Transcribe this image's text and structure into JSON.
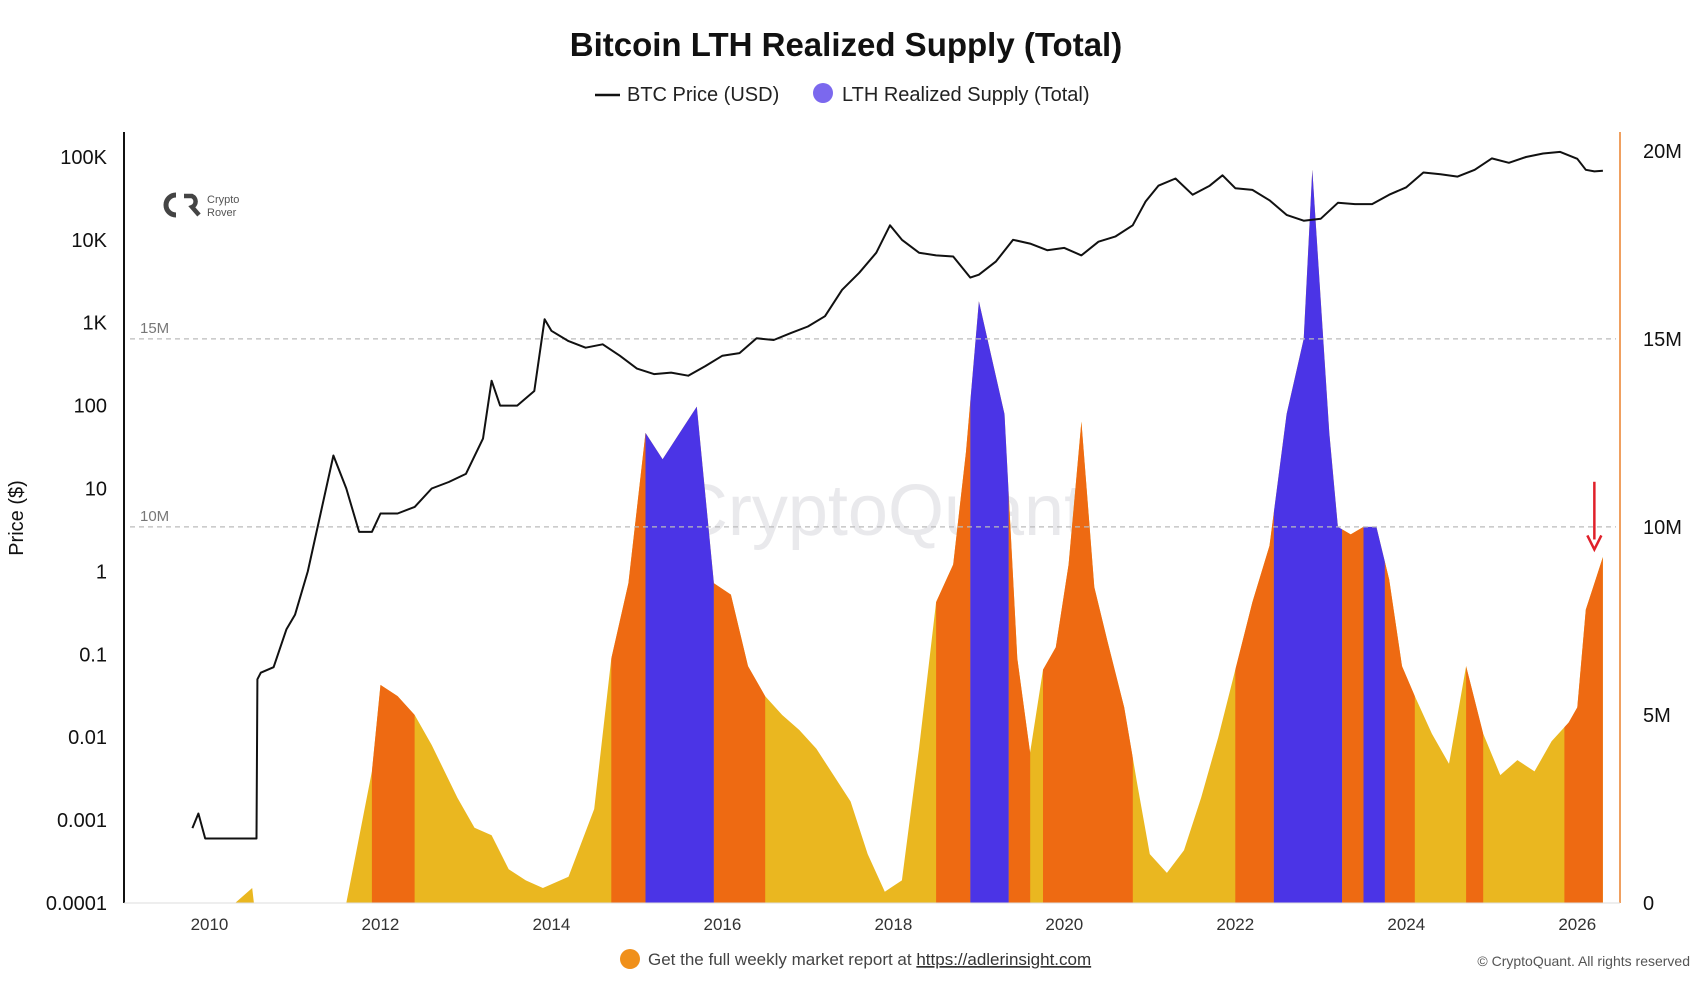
{
  "colors": {
    "price_line": "#111111",
    "lth_low": "#eab720",
    "lth_mid": "#ee6a12",
    "lth_high": "#4b34e6",
    "right_axis": "#f0a060",
    "gridline": "#bbbbbb",
    "arrow": "#e0202a",
    "legend_dot": "#7b68ee",
    "footer_dot": "#f0901a"
  },
  "brand": {
    "logo_icon": "crypto-rover-logo-icon",
    "logo_line1": "Crypto",
    "logo_line2": "Rover",
    "watermark": "CryptoQuant"
  },
  "footer": {
    "icon": "orange-dot-icon",
    "text": "Get the full weekly market report at ",
    "link": "https://adlerinsight.com",
    "copyright": "© CryptoQuant. All rights reserved"
  },
  "chart_data": {
    "type": "area",
    "title": "Bitcoin LTH Realized Supply (Total)",
    "ylabel": "Price ($)",
    "xlabel": "",
    "legend": [
      "BTC Price (USD)",
      "LTH Realized Supply (Total)"
    ],
    "legend_position": "top-center",
    "x_ticks": [
      "2010",
      "2012",
      "2014",
      "2016",
      "2018",
      "2020",
      "2022",
      "2024",
      "2026"
    ],
    "x_range": [
      2009.0,
      2026.5
    ],
    "y_left": {
      "scale": "log",
      "range": [
        0.0001,
        200000
      ],
      "ticks": [
        {
          "v": 0.0001,
          "label": "0.0001"
        },
        {
          "v": 0.001,
          "label": "0.001"
        },
        {
          "v": 0.01,
          "label": "0.01"
        },
        {
          "v": 0.1,
          "label": "0.1"
        },
        {
          "v": 1,
          "label": "1"
        },
        {
          "v": 10,
          "label": "10"
        },
        {
          "v": 100,
          "label": "100"
        },
        {
          "v": 1000,
          "label": "1K"
        },
        {
          "v": 10000,
          "label": "10K"
        },
        {
          "v": 100000,
          "label": "100K"
        }
      ]
    },
    "y_right": {
      "scale": "linear",
      "range": [
        0,
        20500000
      ],
      "ticks": [
        {
          "v": 0,
          "label": "0"
        },
        {
          "v": 5000000,
          "label": "5M"
        },
        {
          "v": 10000000,
          "label": "10M"
        },
        {
          "v": 15000000,
          "label": "15M"
        },
        {
          "v": 20000000,
          "label": "20M"
        }
      ]
    },
    "reference_lines": [
      {
        "value": 15000000,
        "label": "15M"
      },
      {
        "value": 10000000,
        "label": "10M"
      }
    ],
    "highlight_bands": [
      {
        "start": 2011.9,
        "end": 2012.4,
        "level": "mid"
      },
      {
        "start": 2014.7,
        "end": 2015.1,
        "level": "mid"
      },
      {
        "start": 2015.1,
        "end": 2015.9,
        "level": "high"
      },
      {
        "start": 2015.9,
        "end": 2016.5,
        "level": "mid"
      },
      {
        "start": 2018.5,
        "end": 2018.9,
        "level": "mid"
      },
      {
        "start": 2018.9,
        "end": 2019.35,
        "level": "high"
      },
      {
        "start": 2019.35,
        "end": 2019.6,
        "level": "mid"
      },
      {
        "start": 2019.75,
        "end": 2020.8,
        "level": "mid"
      },
      {
        "start": 2022.0,
        "end": 2022.45,
        "level": "mid"
      },
      {
        "start": 2022.45,
        "end": 2023.25,
        "level": "high"
      },
      {
        "start": 2023.25,
        "end": 2023.5,
        "level": "mid"
      },
      {
        "start": 2023.5,
        "end": 2023.75,
        "level": "high"
      },
      {
        "start": 2023.75,
        "end": 2024.1,
        "level": "mid"
      },
      {
        "start": 2024.7,
        "end": 2024.9,
        "level": "mid"
      },
      {
        "start": 2025.85,
        "end": 2026.3,
        "level": "mid"
      }
    ],
    "arrow_annotation": {
      "x": 2026.2,
      "y_from": 11200000,
      "y_to": 9400000
    },
    "series": [
      {
        "name": "BTC Price (USD)",
        "axis": "left",
        "x": [
          2009.8,
          2009.87,
          2009.95,
          2010.0,
          2010.55,
          2010.56,
          2010.6,
          2010.75,
          2010.9,
          2011.0,
          2011.15,
          2011.3,
          2011.45,
          2011.6,
          2011.75,
          2011.9,
          2012.0,
          2012.2,
          2012.4,
          2012.6,
          2012.8,
          2013.0,
          2013.2,
          2013.3,
          2013.4,
          2013.6,
          2013.8,
          2013.92,
          2014.0,
          2014.2,
          2014.4,
          2014.6,
          2014.8,
          2015.0,
          2015.2,
          2015.4,
          2015.6,
          2015.8,
          2016.0,
          2016.2,
          2016.4,
          2016.6,
          2016.8,
          2017.0,
          2017.2,
          2017.4,
          2017.6,
          2017.8,
          2017.96,
          2018.1,
          2018.3,
          2018.5,
          2018.7,
          2018.9,
          2019.0,
          2019.2,
          2019.4,
          2019.6,
          2019.8,
          2020.0,
          2020.2,
          2020.4,
          2020.6,
          2020.8,
          2020.95,
          2021.1,
          2021.3,
          2021.5,
          2021.7,
          2021.85,
          2022.0,
          2022.2,
          2022.4,
          2022.6,
          2022.8,
          2023.0,
          2023.2,
          2023.4,
          2023.6,
          2023.8,
          2024.0,
          2024.2,
          2024.4,
          2024.6,
          2024.8,
          2025.0,
          2025.2,
          2025.4,
          2025.6,
          2025.8,
          2026.0,
          2026.1,
          2026.2,
          2026.3
        ],
        "y": [
          0.0008,
          0.0012,
          0.0006,
          0.0006,
          0.0006,
          0.05,
          0.06,
          0.07,
          0.2,
          0.3,
          1.0,
          5,
          25,
          10,
          3,
          3,
          5,
          5,
          6,
          10,
          12,
          15,
          40,
          200,
          100,
          100,
          150,
          1100,
          800,
          600,
          500,
          550,
          400,
          280,
          240,
          250,
          230,
          300,
          400,
          430,
          650,
          620,
          750,
          900,
          1200,
          2500,
          4000,
          7000,
          15000,
          10000,
          7000,
          6500,
          6300,
          3500,
          3800,
          5500,
          10000,
          9000,
          7500,
          8000,
          6500,
          9500,
          11000,
          15000,
          29000,
          45000,
          55000,
          35000,
          45000,
          60000,
          42000,
          40000,
          30000,
          20000,
          17000,
          18000,
          28000,
          27000,
          27000,
          35000,
          43000,
          65000,
          62000,
          58000,
          70000,
          96000,
          85000,
          100000,
          110000,
          115000,
          95000,
          70000,
          67000,
          68000
        ]
      },
      {
        "name": "LTH Realized Supply (Total)",
        "axis": "right",
        "x": [
          2010.3,
          2010.5,
          2010.52,
          2011.6,
          2011.9,
          2012.0,
          2012.2,
          2012.4,
          2012.6,
          2012.9,
          2013.1,
          2013.3,
          2013.5,
          2013.7,
          2013.9,
          2014.2,
          2014.5,
          2014.7,
          2014.9,
          2015.1,
          2015.3,
          2015.5,
          2015.7,
          2015.9,
          2016.1,
          2016.3,
          2016.5,
          2016.7,
          2016.9,
          2017.1,
          2017.3,
          2017.5,
          2017.7,
          2017.9,
          2018.1,
          2018.3,
          2018.5,
          2018.7,
          2018.85,
          2019.0,
          2019.15,
          2019.3,
          2019.45,
          2019.6,
          2019.75,
          2019.9,
          2020.05,
          2020.2,
          2020.35,
          2020.5,
          2020.7,
          2020.85,
          2021.0,
          2021.2,
          2021.4,
          2021.6,
          2021.8,
          2022.0,
          2022.2,
          2022.4,
          2022.6,
          2022.8,
          2022.9,
          2023.0,
          2023.1,
          2023.2,
          2023.35,
          2023.5,
          2023.65,
          2023.8,
          2023.95,
          2024.1,
          2024.3,
          2024.5,
          2024.7,
          2024.9,
          2025.1,
          2025.3,
          2025.5,
          2025.7,
          2025.9,
          2026.0,
          2026.1,
          2026.2,
          2026.3
        ],
        "y": [
          0,
          400000,
          0,
          0,
          3500000,
          5800000,
          5500000,
          5000000,
          4200000,
          2800000,
          2000000,
          1800000,
          900000,
          600000,
          400000,
          700000,
          2500000,
          6500000,
          8500000,
          12500000,
          11800000,
          12500000,
          13200000,
          8500000,
          8200000,
          6300000,
          5500000,
          5000000,
          4600000,
          4100000,
          3400000,
          2700000,
          1300000,
          300000,
          600000,
          4100000,
          8000000,
          9000000,
          12000000,
          16000000,
          14500000,
          13000000,
          6500000,
          4000000,
          6200000,
          6800000,
          9000000,
          12800000,
          8400000,
          7000000,
          5200000,
          3200000,
          1300000,
          800000,
          1400000,
          2800000,
          4400000,
          6200000,
          8000000,
          9500000,
          13000000,
          15000000,
          19500000,
          16000000,
          12500000,
          10000000,
          9800000,
          10000000,
          10000000,
          8600000,
          6300000,
          5500000,
          4500000,
          3700000,
          6300000,
          4500000,
          3400000,
          3800000,
          3500000,
          4300000,
          4800000,
          5200000,
          7800000,
          8500000,
          9200000
        ]
      }
    ]
  }
}
